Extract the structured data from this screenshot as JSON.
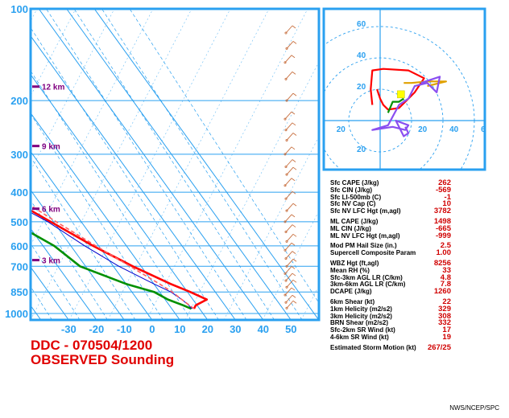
{
  "title_line1": "DDC - 070504/1200",
  "title_line2": "OBSERVED Sounding",
  "credit": "NWS/NCEP/SPC",
  "colors": {
    "frame": "#2aa0f0",
    "temperature": "#ff0000",
    "dewpoint": "#009000",
    "wetbulb": "#0000cc",
    "parcel": "#ff6060",
    "hodograph": "#8a4ff0",
    "storm_motion": "#ffff00",
    "values": "#d00000"
  },
  "chart_data": [
    {
      "type": "line",
      "name": "skew-t",
      "y_axis": "pressure_mb",
      "x_axis": "temperature_C",
      "ylim": [
        1000,
        100
      ],
      "xlim": [
        -40,
        55
      ],
      "pressure_ticks": [
        "100",
        "200",
        "300",
        "400",
        "500",
        "600",
        "700",
        "850",
        "1000"
      ],
      "temperature_ticks": [
        "-30",
        "-20",
        "-10",
        "0",
        "10",
        "20",
        "30",
        "40",
        "50"
      ],
      "height_markers": [
        "12 km",
        "9 km",
        "6 km",
        "3 km"
      ],
      "series": [
        {
          "key": "temperature",
          "points": [
            [
              965,
              18
            ],
            [
              940,
              19.5
            ],
            [
              900,
              25
            ],
            [
              850,
              21
            ],
            [
              800,
              16
            ],
            [
              700,
              7
            ],
            [
              600,
              -2
            ],
            [
              500,
              -11
            ],
            [
              400,
              -22
            ],
            [
              300,
              -36
            ],
            [
              250,
              -44
            ],
            [
              200,
              -52
            ],
            [
              150,
              -53
            ],
            [
              120,
              -57
            ],
            [
              100,
              -56
            ]
          ]
        },
        {
          "key": "dewpoint",
          "points": [
            [
              965,
              17
            ],
            [
              940,
              15
            ],
            [
              900,
              11
            ],
            [
              850,
              8
            ],
            [
              800,
              0
            ],
            [
              700,
              -12
            ],
            [
              600,
              -16
            ],
            [
              500,
              -25
            ],
            [
              400,
              -32
            ],
            [
              300,
              -50
            ],
            [
              250,
              -60
            ],
            [
              200,
              -70
            ],
            [
              150,
              -70
            ],
            [
              120,
              -70
            ],
            [
              100,
              -68
            ]
          ]
        },
        {
          "key": "wetbulb",
          "points": [
            [
              965,
              17.3
            ],
            [
              940,
              17
            ],
            [
              900,
              16
            ],
            [
              850,
              14
            ],
            [
              800,
              10
            ],
            [
              700,
              2
            ],
            [
              600,
              -5
            ],
            [
              500,
              -12
            ],
            [
              400,
              -24
            ],
            [
              300,
              -38
            ]
          ]
        },
        {
          "key": "parcel",
          "points": [
            [
              965,
              18
            ],
            [
              900,
              16
            ],
            [
              850,
              14.5
            ],
            [
              800,
              12
            ],
            [
              700,
              6
            ],
            [
              600,
              -1
            ],
            [
              500,
              -9
            ],
            [
              400,
              -18
            ],
            [
              300,
              -32
            ],
            [
              250,
              -41
            ],
            [
              200,
              -52
            ],
            [
              150,
              -60
            ],
            [
              100,
              -72
            ]
          ]
        }
      ]
    },
    {
      "type": "line",
      "name": "hodograph",
      "rings": [
        "20",
        "40",
        "60"
      ],
      "x_labels": [
        "20",
        "20",
        "40",
        "60"
      ],
      "y_labels": [
        "60",
        "40",
        "20",
        "20"
      ],
      "series": [
        {
          "key": "red",
          "points": [
            [
              -5,
              10
            ],
            [
              -6,
              20
            ],
            [
              -5,
              32
            ],
            [
              2,
              33
            ],
            [
              18,
              32
            ],
            [
              28,
              27
            ],
            [
              22,
              18
            ],
            [
              12,
              8
            ],
            [
              5,
              7
            ],
            [
              2,
              10
            ],
            [
              0,
              14
            ],
            [
              -2,
              20
            ]
          ]
        },
        {
          "key": "green",
          "points": [
            [
              5,
              5
            ],
            [
              8,
              12
            ],
            [
              12,
              12
            ],
            [
              15,
              14
            ]
          ]
        },
        {
          "key": "orange",
          "points": [
            [
              15,
              24
            ],
            [
              20,
              24
            ],
            [
              30,
              25
            ],
            [
              42,
              25
            ],
            [
              30,
              22
            ]
          ]
        },
        {
          "key": "purple",
          "points": [
            [
              26,
              24
            ],
            [
              38,
              28
            ],
            [
              36,
              18
            ],
            [
              30,
              24
            ],
            [
              22,
              22
            ],
            [
              18,
              14
            ],
            [
              12,
              10
            ],
            [
              5,
              -3
            ],
            [
              -5,
              -6
            ],
            [
              8,
              -4
            ],
            [
              16,
              -6
            ],
            [
              18,
              -3
            ],
            [
              10,
              0
            ],
            [
              15,
              -10
            ],
            [
              18,
              -8
            ],
            [
              16,
              -4
            ]
          ]
        }
      ],
      "storm_motion": {
        "direction_deg": 267,
        "speed_kt": 25
      }
    }
  ],
  "params": [
    {
      "label": "Sfc CAPE (J/kg)",
      "value": "262"
    },
    {
      "label": "Sfc CIN (J/kg)",
      "value": "-569"
    },
    {
      "label": "Sfc LI-500mb (C)",
      "value": "-1"
    },
    {
      "label": "Sfc NV Cap (C)",
      "value": "10"
    },
    {
      "label": "Sfc NV LFC Hgt (m,agl)",
      "value": "3782"
    },
    {
      "label": "",
      "value": ""
    },
    {
      "label": "ML CAPE (J/kg)",
      "value": "1498"
    },
    {
      "label": "ML CIN (J/kg)",
      "value": "-665"
    },
    {
      "label": "ML NV LFC Hgt (m,agl)",
      "value": "-999"
    },
    {
      "label": "",
      "value": ""
    },
    {
      "label": "Mod PM Hail Size (in.)",
      "value": "2.5"
    },
    {
      "label": "Supercell Composite Param",
      "value": "1.00"
    },
    {
      "label": "",
      "value": ""
    },
    {
      "label": "WBZ Hgt (ft,agl)",
      "value": "8256"
    },
    {
      "label": "Mean RH (%)",
      "value": "33"
    },
    {
      "label": "Sfc-3km AGL LR (C/km)",
      "value": "4.8"
    },
    {
      "label": "3km-6km AGL LR (C/km)",
      "value": "7.8"
    },
    {
      "label": "DCAPE (J/kg)",
      "value": "1260"
    },
    {
      "label": "",
      "value": ""
    },
    {
      "label": "6km Shear (kt)",
      "value": "22"
    },
    {
      "label": "1km Helicity (m2/s2)",
      "value": "329"
    },
    {
      "label": "3km Helicity (m2/s2)",
      "value": "308"
    },
    {
      "label": "BRN Shear (m2/s2)",
      "value": "332"
    },
    {
      "label": "Sfc-2km SR Wind (kt)",
      "value": "17"
    },
    {
      "label": "4-6km SR Wind (kt)",
      "value": "19"
    },
    {
      "label": "",
      "value": ""
    },
    {
      "label": "Estimated Storm Motion (kt)",
      "value": "267/25"
    }
  ]
}
